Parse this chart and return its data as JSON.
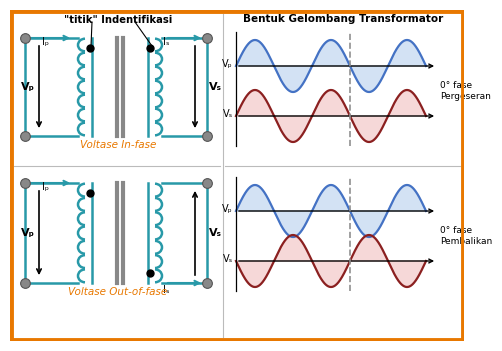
{
  "title_left": "\"titik\" Indentifikasi",
  "title_right": "Bentuk Gelombang Transformator",
  "label_vp": "Vₚ",
  "label_vs": "Vₛ",
  "label_ip": "Iₚ",
  "label_is": "Iₛ",
  "label_in_fase": "Voltase In-fase",
  "label_out_fase": "Voltase Out-of-fase",
  "label_0deg_pergeseran": "0° fase\nPergeseran",
  "label_0deg_pembalikan": "0° fase\nPembalikan",
  "bg_color": "#FFFFFF",
  "border_color": "#E87800",
  "teal_color": "#2899A8",
  "blue_wave_color": "#4472C4",
  "blue_fill_color": "#C5D9F1",
  "red_wave_color": "#8B2020",
  "red_fill_color": "#F4CCCC",
  "dashed_color": "#909090",
  "text_color_orange": "#E87800",
  "core_color": "#888888",
  "dot_color": "#606060",
  "title_fontsize": 7.5,
  "wave_amp": 26,
  "wave_wl": 76
}
